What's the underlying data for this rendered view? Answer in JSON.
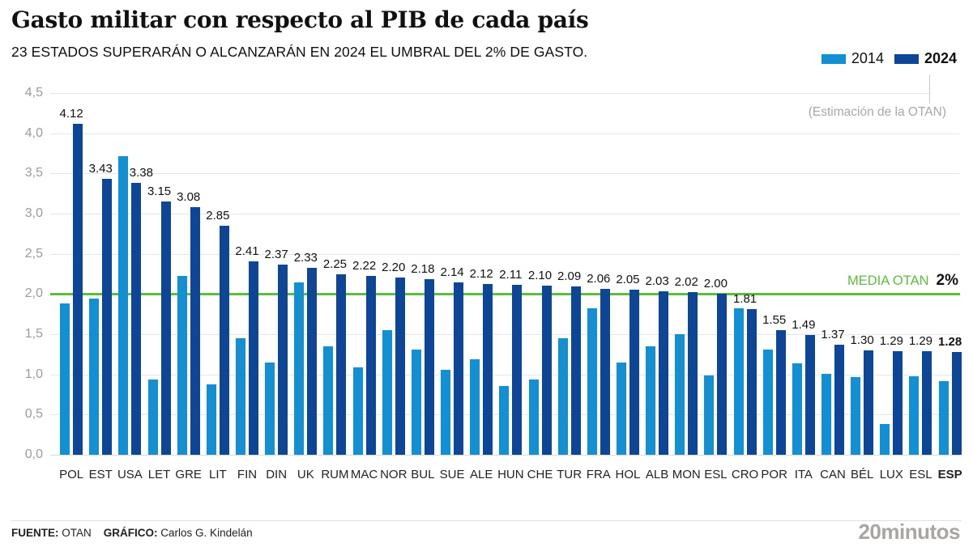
{
  "header": {
    "title": "Gasto militar con respecto al PIB de cada país",
    "subtitle": "23 ESTADOS SUPERARÁN O ALCANZARÁN EN 2024 EL UMBRAL DEL 2% DE GASTO."
  },
  "legend": {
    "items": [
      {
        "label": "2014",
        "color": "#1390d3",
        "bold": false
      },
      {
        "label": "2024",
        "color": "#0d4696",
        "bold": true
      }
    ]
  },
  "annotation": {
    "text": "(Estimación de la OTAN)"
  },
  "reference_line": {
    "value": 2.0,
    "label_green": "MEDIA OTAN",
    "label_black": "2%",
    "color": "#5cbe3b"
  },
  "chart_data": {
    "type": "bar",
    "title": "Gasto militar con respecto al PIB de cada país",
    "subtitle": "23 ESTADOS SUPERARÁN O ALCANZARÁN EN 2024 EL UMBRAL DEL 2% DE GASTO.",
    "categories": [
      "POL",
      "EST",
      "USA",
      "LET",
      "GRE",
      "LIT",
      "FIN",
      "DIN",
      "UK",
      "RUM",
      "MAC",
      "NOR",
      "BUL",
      "SUE",
      "ALE",
      "HUN",
      "CHE",
      "TUR",
      "FRA",
      "HOL",
      "ALB",
      "MON",
      "ESL",
      "CRO",
      "POR",
      "ITA",
      "CAN",
      "BÉL",
      "LUX",
      "ESL",
      "ESP"
    ],
    "series": [
      {
        "name": "2014",
        "color": "#1390d3",
        "values": [
          1.88,
          1.94,
          3.71,
          0.94,
          2.22,
          0.88,
          1.45,
          1.15,
          2.14,
          1.35,
          1.09,
          1.55,
          1.31,
          1.06,
          1.19,
          0.86,
          0.94,
          1.45,
          1.82,
          1.15,
          1.35,
          1.5,
          0.99,
          1.82,
          1.31,
          1.14,
          1.01,
          0.97,
          0.38,
          0.98,
          0.92
        ]
      },
      {
        "name": "2024",
        "color": "#0d4696",
        "values": [
          4.12,
          3.43,
          3.38,
          3.15,
          3.08,
          2.85,
          2.41,
          2.37,
          2.33,
          2.25,
          2.22,
          2.2,
          2.18,
          2.14,
          2.12,
          2.11,
          2.1,
          2.09,
          2.06,
          2.05,
          2.03,
          2.02,
          2.0,
          1.81,
          1.55,
          1.49,
          1.37,
          1.3,
          1.29,
          1.29,
          1.28
        ]
      }
    ],
    "value_labels_series": "2024",
    "highlight_category": "ESP",
    "ylim": [
      0,
      4.5
    ],
    "ytick_values": [
      4.5,
      4.0,
      3.5,
      3.0,
      2.5,
      2.0,
      1.5,
      1.0,
      0.5,
      0.0
    ],
    "ytick_labels": [
      "4,5",
      "4,0",
      "3,5",
      "3,0",
      "2,5",
      "2,0",
      "1,5",
      "1,0",
      "0,5",
      "0,0"
    ],
    "grid": true,
    "legend_position": "top-right",
    "reference_line_value": 2.0,
    "reference_line_label": "MEDIA OTAN 2%"
  },
  "footer": {
    "fuente_label": "FUENTE:",
    "fuente_value": "OTAN",
    "grafico_label": "GRÁFICO:",
    "grafico_value": "Carlos G. Kindelán",
    "logo": "20minutos"
  }
}
